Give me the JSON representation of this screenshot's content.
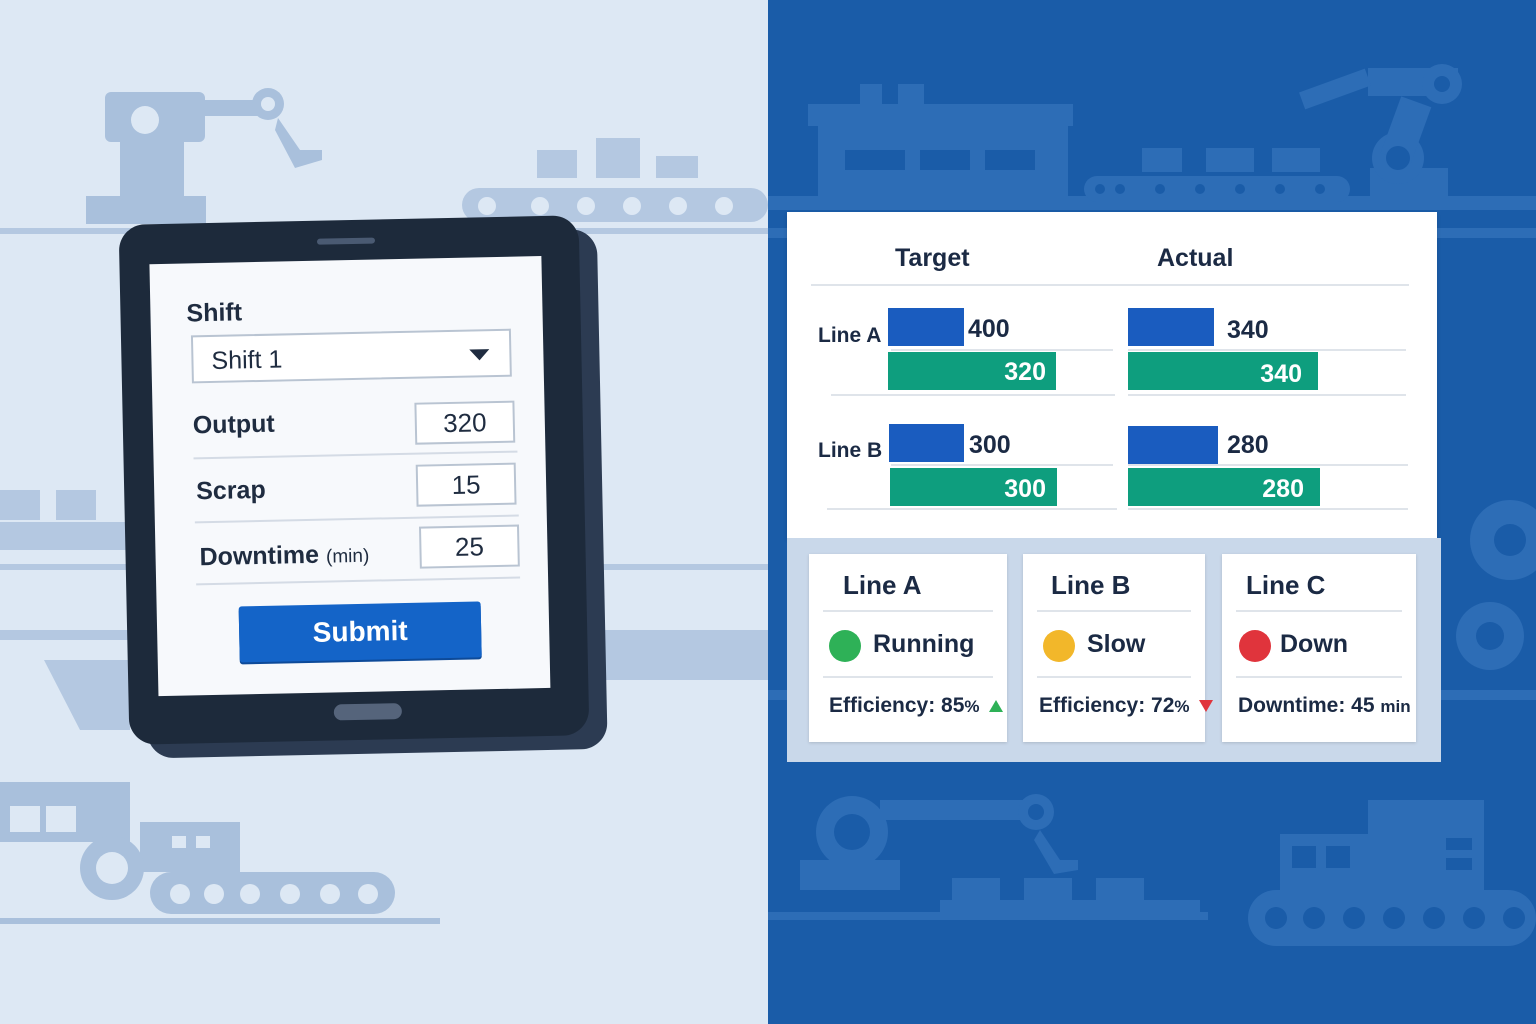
{
  "form": {
    "shift_label": "Shift",
    "shift_value": "Shift 1",
    "output_label": "Output",
    "output_value": "320",
    "scrap_label": "Scrap",
    "scrap_value": "15",
    "downtime_label": "Downtime",
    "downtime_unit": "(min)",
    "downtime_value": "25",
    "submit_label": "Submit"
  },
  "chart": {
    "target_header": "Target",
    "actual_header": "Actual",
    "lines": [
      {
        "label": "Line A",
        "target_top": "400",
        "target_bottom": "320",
        "actual_top": "340",
        "actual_bottom": "340"
      },
      {
        "label": "Line B",
        "target_top": "300",
        "target_bottom": "300",
        "actual_top": "280",
        "actual_bottom": "280"
      }
    ]
  },
  "chart_data": {
    "type": "bar",
    "categories": [
      "Line A",
      "Line B"
    ],
    "groups": [
      "Target",
      "Actual"
    ],
    "series": [
      {
        "values": {
          "Target": [
            400,
            300
          ],
          "Actual": [
            340,
            280
          ]
        }
      },
      {
        "values": {
          "Target": [
            320,
            300
          ],
          "Actual": [
            340,
            280
          ]
        }
      }
    ]
  },
  "status": {
    "cards": [
      {
        "title": "Line A",
        "status": "Running",
        "status_color": "#2eb157",
        "metric_label": "Efficiency:",
        "metric_value": "85",
        "metric_unit": "%",
        "trend": "up",
        "trend_color": "#2eb157"
      },
      {
        "title": "Line B",
        "status": "Slow",
        "status_color": "#f2b72a",
        "metric_label": "Efficiency:",
        "metric_value": "72",
        "metric_unit": "%",
        "trend": "down",
        "trend_color": "#e0343c"
      },
      {
        "title": "Line C",
        "status": "Down",
        "status_color": "#e0343c",
        "metric_label": "Downtime:",
        "metric_value": "45",
        "metric_unit": "min",
        "trend": "",
        "trend_color": ""
      }
    ]
  },
  "colors": {
    "left_bg": "#dde8f4",
    "right_bg": "#1a5ca8",
    "accent_blue": "#1464c8",
    "bar_blue": "#1a5cbf",
    "bar_green": "#0e9e7e"
  },
  "icons": [
    "robot-arm-icon",
    "conveyor-icon",
    "gear-icon",
    "caret-down-icon",
    "arrow-up-icon",
    "arrow-down-icon"
  ]
}
